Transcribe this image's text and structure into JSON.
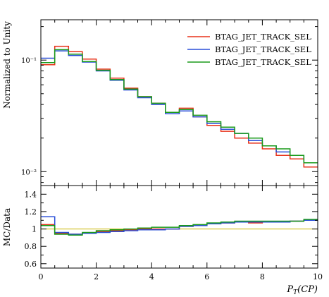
{
  "chart_data": [
    {
      "type": "line",
      "panel": "main",
      "ylabel": "Normalized to Unity",
      "yscale": "log",
      "ylim": [
        0.0075,
        0.23
      ],
      "xlim": [
        0,
        10
      ],
      "ytick_labels": [
        {
          "value": 0.1,
          "label": "10⁻¹"
        },
        {
          "value": 0.01,
          "label": "10⁻²"
        }
      ],
      "legend_position": "top-right",
      "x_edges": [
        0,
        0.5,
        1,
        1.5,
        2,
        2.5,
        3,
        3.5,
        4,
        4.5,
        5,
        5.5,
        6,
        6.5,
        7,
        7.5,
        8,
        8.5,
        9,
        9.5,
        10
      ],
      "series": [
        {
          "name": "BTAG_JET_TRACK_SEL",
          "color": "#e8321a",
          "values": [
            0.091,
            0.133,
            0.119,
            0.102,
            0.083,
            0.069,
            0.056,
            0.047,
            0.041,
            0.034,
            0.037,
            0.031,
            0.026,
            0.023,
            0.02,
            0.018,
            0.016,
            0.014,
            0.013,
            0.011
          ]
        },
        {
          "name": "BTAG_JET_TRACK_SEL",
          "color": "#2a4fd8",
          "values": [
            0.104,
            0.121,
            0.11,
            0.096,
            0.08,
            0.066,
            0.054,
            0.046,
            0.04,
            0.033,
            0.035,
            0.031,
            0.027,
            0.024,
            0.022,
            0.019,
            0.017,
            0.015,
            0.014,
            0.012
          ]
        },
        {
          "name": "BTAG_JET_TRACK_SEL",
          "color": "#1a9a1a",
          "values": [
            0.095,
            0.124,
            0.113,
            0.097,
            0.081,
            0.067,
            0.055,
            0.047,
            0.041,
            0.034,
            0.036,
            0.032,
            0.028,
            0.025,
            0.022,
            0.02,
            0.017,
            0.016,
            0.014,
            0.012
          ]
        }
      ]
    },
    {
      "type": "line",
      "panel": "ratio",
      "ylabel": "MC/Data",
      "xlabel": "P_T(CP)",
      "ylim": [
        0.55,
        1.5
      ],
      "xlim": [
        0,
        10
      ],
      "ytick_labels": [
        0.6,
        0.8,
        1,
        1.2,
        1.4
      ],
      "xtick_labels": [
        0,
        2,
        4,
        6,
        8,
        10
      ],
      "reference_line": 1,
      "x_edges": [
        0,
        0.5,
        1,
        1.5,
        2,
        2.5,
        3,
        3.5,
        4,
        4.5,
        5,
        5.5,
        6,
        6.5,
        7,
        7.5,
        8,
        8.5,
        9,
        9.5,
        10
      ],
      "series": [
        {
          "color": "#e8321a",
          "values": [
            1.05,
            0.95,
            0.94,
            0.95,
            0.97,
            0.98,
            0.99,
            1.0,
            1.0,
            1.0,
            1.03,
            1.04,
            1.06,
            1.07,
            1.08,
            1.07,
            1.08,
            1.08,
            1.09,
            1.1
          ]
        },
        {
          "color": "#2a4fd8",
          "values": [
            1.14,
            0.96,
            0.94,
            0.95,
            0.96,
            0.97,
            0.98,
            0.99,
            0.99,
            1.0,
            1.03,
            1.04,
            1.06,
            1.07,
            1.08,
            1.08,
            1.08,
            1.08,
            1.09,
            1.1
          ]
        },
        {
          "color": "#1a9a1a",
          "values": [
            1.04,
            0.94,
            0.93,
            0.96,
            0.98,
            0.99,
            1.0,
            1.01,
            1.02,
            1.02,
            1.04,
            1.05,
            1.07,
            1.08,
            1.09,
            1.09,
            1.09,
            1.09,
            1.09,
            1.11
          ]
        }
      ]
    }
  ]
}
